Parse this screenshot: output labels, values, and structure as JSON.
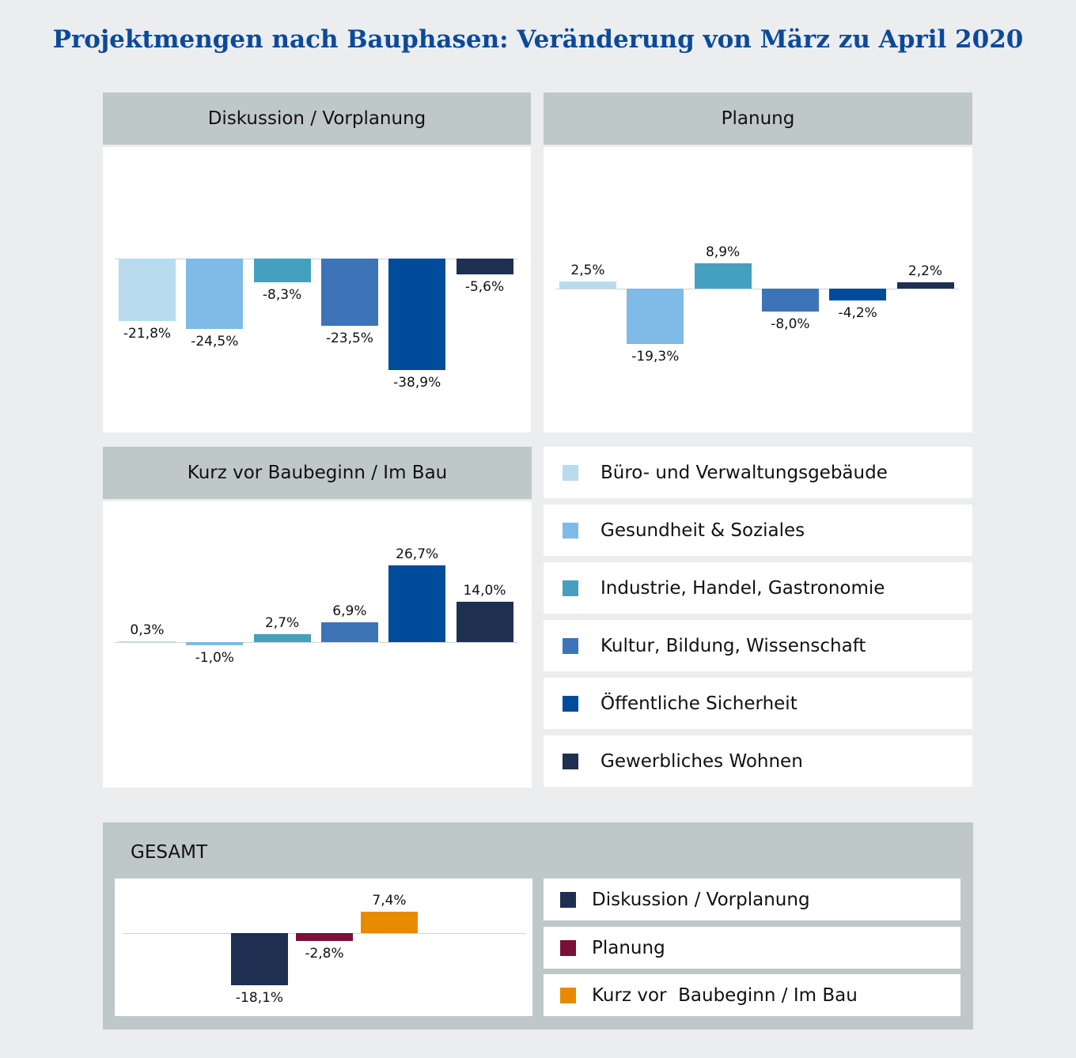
{
  "title": "Projektmengen nach Bauphasen: Veränderung von März zu April 2020",
  "categories": [
    "Büro- und Verwaltungsgebäude",
    "Gesundheit & Soziales",
    "Industrie, Handel, Gastronomie",
    "Kultur, Bildung, Wissenschaft",
    "Öffentliche Sicherheit",
    "Gewerbliches Wohnen"
  ],
  "category_colors": [
    "#b8dcee",
    "#7fbbe6",
    "#45a0c0",
    "#3d74b8",
    "#004c9a",
    "#1e2f52"
  ],
  "gesamt_title": "GESAMT",
  "phase_legend": [
    "Diskussion / Vorplanung",
    "Planung",
    "Kurz vor  Baubeginn / Im Bau"
  ],
  "phase_colors": [
    "#1e2f52",
    "#7a1038",
    "#e88a00"
  ],
  "chart_data": [
    {
      "type": "bar",
      "title": "Diskussion / Vorplanung",
      "categories": [
        "Büro- und Verwaltungsgebäude",
        "Gesundheit & Soziales",
        "Industrie, Handel, Gastronomie",
        "Kultur, Bildung, Wissenschaft",
        "Öffentliche Sicherheit",
        "Gewerbliches Wohnen"
      ],
      "values": [
        -21.8,
        -24.5,
        -8.3,
        -23.5,
        -38.9,
        -5.6
      ],
      "labels": [
        "-21,8%",
        "-24,5%",
        "-8,3%",
        "-23,5%",
        "-38,9%",
        "-5,6%"
      ],
      "unit": "%"
    },
    {
      "type": "bar",
      "title": "Planung",
      "categories": [
        "Büro- und Verwaltungsgebäude",
        "Gesundheit & Soziales",
        "Industrie, Handel, Gastronomie",
        "Kultur, Bildung, Wissenschaft",
        "Öffentliche Sicherheit",
        "Gewerbliches Wohnen"
      ],
      "values": [
        2.5,
        -19.3,
        8.9,
        -8.0,
        -4.2,
        2.2
      ],
      "labels": [
        "2,5%",
        "-19,3%",
        "8,9%",
        "-8,0%",
        "-4,2%",
        "2,2%"
      ],
      "unit": "%"
    },
    {
      "type": "bar",
      "title": "Kurz vor Baubeginn / Im Bau",
      "categories": [
        "Büro- und Verwaltungsgebäude",
        "Gesundheit & Soziales",
        "Industrie, Handel, Gastronomie",
        "Kultur, Bildung, Wissenschaft",
        "Öffentliche Sicherheit",
        "Gewerbliches Wohnen"
      ],
      "values": [
        0.3,
        -1.0,
        2.7,
        6.9,
        26.7,
        14.0
      ],
      "labels": [
        "0,3%",
        "-1,0%",
        "2,7%",
        "6,9%",
        "26,7%",
        "14,0%"
      ],
      "unit": "%"
    },
    {
      "type": "bar",
      "title": "GESAMT",
      "categories": [
        "Diskussion / Vorplanung",
        "Planung",
        "Kurz vor Baubeginn / Im Bau"
      ],
      "values": [
        -18.1,
        -2.8,
        7.4
      ],
      "labels": [
        "-18,1%",
        "-2,8%",
        "7,4%"
      ],
      "unit": "%"
    }
  ]
}
